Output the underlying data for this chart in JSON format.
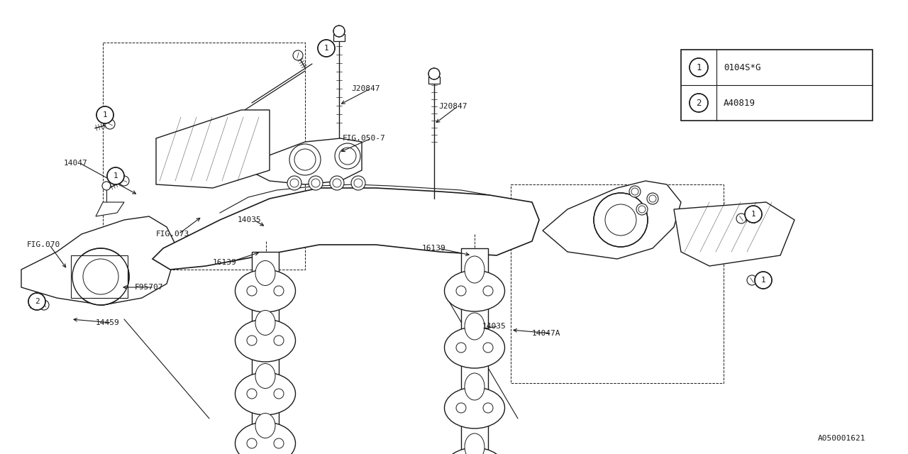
{
  "bg_color": "#ffffff",
  "line_color": "#1a1a1a",
  "legend_items": [
    {
      "symbol": "1",
      "code": "0104S*G"
    },
    {
      "symbol": "2",
      "code": "A40819"
    }
  ],
  "footer": "A050001621",
  "fig_w": 12.8,
  "fig_h": 6.4,
  "dpi": 100
}
